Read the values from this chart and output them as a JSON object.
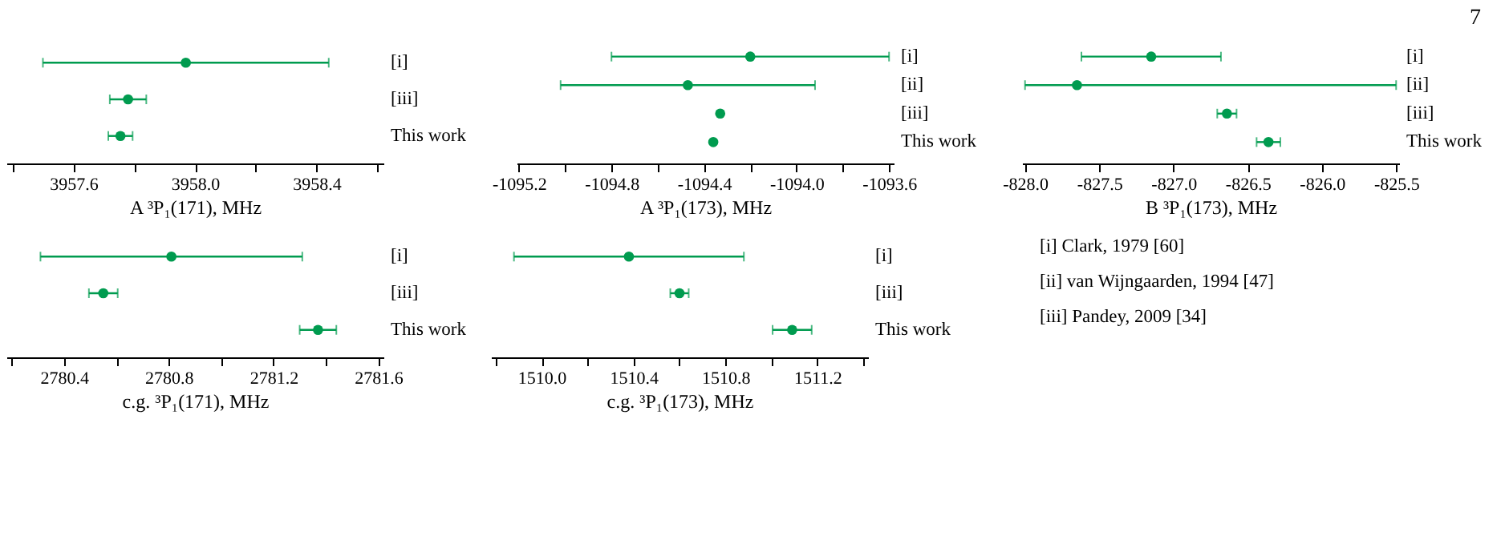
{
  "chart_data": [
    {
      "type": "scatter",
      "orientation": "horizontal",
      "marker": "circle",
      "grid": false,
      "xlabel": "A ³P₁(171), MHz",
      "categories": [
        "[i]",
        "[iii]",
        "This work"
      ],
      "series": [
        {
          "color": "#009b4f",
          "values": [
            3957.97,
            3957.78,
            3957.755
          ],
          "errors": [
            0.47,
            0.06,
            0.04
          ]
        }
      ],
      "xlim": [
        3957.38,
        3958.62
      ],
      "xticks": [
        {
          "value": 3957.4,
          "label": null
        },
        3957.6,
        {
          "value": 3957.8,
          "label": null
        },
        {
          "value": 3958,
          "label": "3958.0"
        },
        {
          "value": 3958.2,
          "label": null
        },
        3958.4,
        {
          "value": 3958.6,
          "label": null
        }
      ]
    },
    {
      "type": "scatter",
      "orientation": "horizontal",
      "marker": "circle",
      "grid": false,
      "xlabel": "A ³P₁(173), MHz",
      "categories": [
        "[i]",
        "[ii]",
        "[iii]",
        "This work"
      ],
      "series": [
        {
          "color": "#009b4f",
          "values": [
            -1094.2,
            -1094.47,
            -1094.33,
            -1094.36
          ],
          "errors": [
            0.6,
            0.55,
            null,
            null
          ]
        }
      ],
      "xlim": [
        -1095.21,
        -1093.58
      ],
      "xticks": [
        -1095.2,
        {
          "value": -1095,
          "label": null
        },
        -1094.8,
        {
          "value": -1094.6,
          "label": null
        },
        -1094.4,
        {
          "value": -1094.2,
          "label": null
        },
        {
          "value": -1094,
          "label": "-1094.0"
        },
        {
          "value": -1093.8,
          "label": null
        },
        -1093.6
      ]
    },
    {
      "type": "scatter",
      "orientation": "horizontal",
      "marker": "circle",
      "grid": false,
      "xlabel": "B ³P₁(173), MHz",
      "categories": [
        "[i]",
        "[ii]",
        "[iii]",
        "This work"
      ],
      "series": [
        {
          "color": "#009b4f",
          "values": [
            -827.15,
            -827.65,
            -826.64,
            -826.36
          ],
          "errors": [
            0.47,
            [
              -828.0,
              -825.5
            ],
            0.065,
            0.08
          ]
        }
      ],
      "xlim": [
        -828.02,
        -825.48
      ],
      "xticks": [
        {
          "value": -828,
          "label": "-828.0"
        },
        -827.5,
        {
          "value": -827,
          "label": "-827.0"
        },
        -826.5,
        {
          "value": -826,
          "label": "-826.0"
        },
        -825.5
      ]
    },
    {
      "type": "scatter",
      "orientation": "horizontal",
      "marker": "circle",
      "grid": false,
      "xlabel": "c.g. ³P₁(171), MHz",
      "categories": [
        "[i]",
        "[iii]",
        "This work"
      ],
      "series": [
        {
          "color": "#009b4f",
          "values": [
            2780.81,
            2780.55,
            2781.37
          ],
          "errors": [
            0.5,
            0.055,
            0.07
          ]
        }
      ],
      "xlim": [
        2780.18,
        2781.62
      ],
      "xticks": [
        {
          "value": 2780.2,
          "label": null
        },
        2780.4,
        {
          "value": 2780.6,
          "label": null
        },
        2780.8,
        {
          "value": 2781,
          "label": null
        },
        2781.2,
        {
          "value": 2781.4,
          "label": null
        },
        2781.6
      ]
    },
    {
      "type": "scatter",
      "orientation": "horizontal",
      "marker": "circle",
      "grid": false,
      "xlabel": "c.g. ³P₁(173), MHz",
      "categories": [
        "[i]",
        "[iii]",
        "This work"
      ],
      "series": [
        {
          "color": "#009b4f",
          "values": [
            1510.38,
            1510.6,
            1511.09
          ],
          "errors": [
            0.5,
            0.04,
            0.085
          ]
        }
      ],
      "xlim": [
        1509.78,
        1511.42
      ],
      "xticks": [
        {
          "value": 1509.8,
          "label": null
        },
        {
          "value": 1510,
          "label": "1510.0"
        },
        {
          "value": 1510.2,
          "label": null
        },
        1510.4,
        {
          "value": 1510.6,
          "label": null
        },
        1510.8,
        {
          "value": 1511,
          "label": null
        },
        1511.2,
        {
          "value": 1511.4,
          "label": null
        }
      ]
    },
    {
      "type": "other",
      "annotations": [
        "[i]   Clark, 1979   [60]",
        "[ii]  van Wijngaarden, 1994  [47]",
        "[iii]  Pandey, 2009   [34]",
        "7"
      ]
    }
  ]
}
